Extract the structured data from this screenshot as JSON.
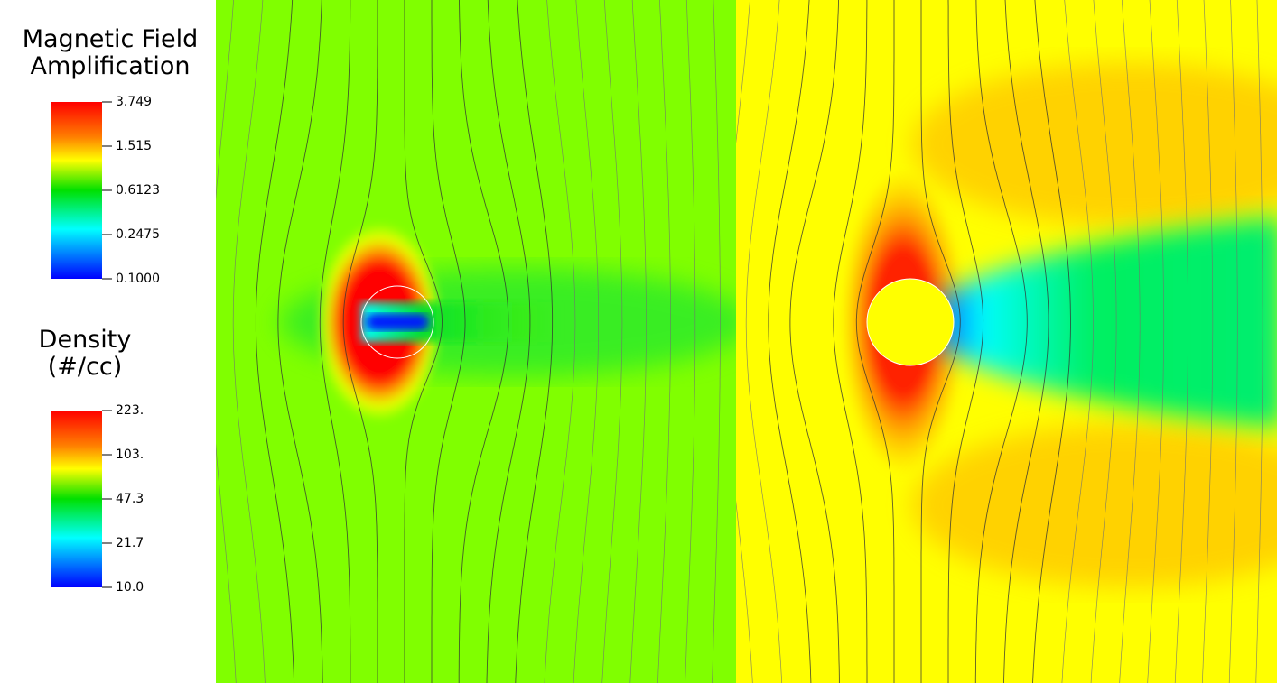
{
  "legends": [
    {
      "title_lines": [
        "Magnetic Field",
        "Amplification"
      ],
      "tick_labels": [
        "3.749",
        "1.515",
        "0.6123",
        "0.2475",
        "0.1000"
      ]
    },
    {
      "title_lines": [
        "Density",
        "(#/cc)"
      ],
      "tick_labels": [
        "223.",
        "103.",
        "47.3",
        "21.7",
        "10.0"
      ]
    }
  ]
}
